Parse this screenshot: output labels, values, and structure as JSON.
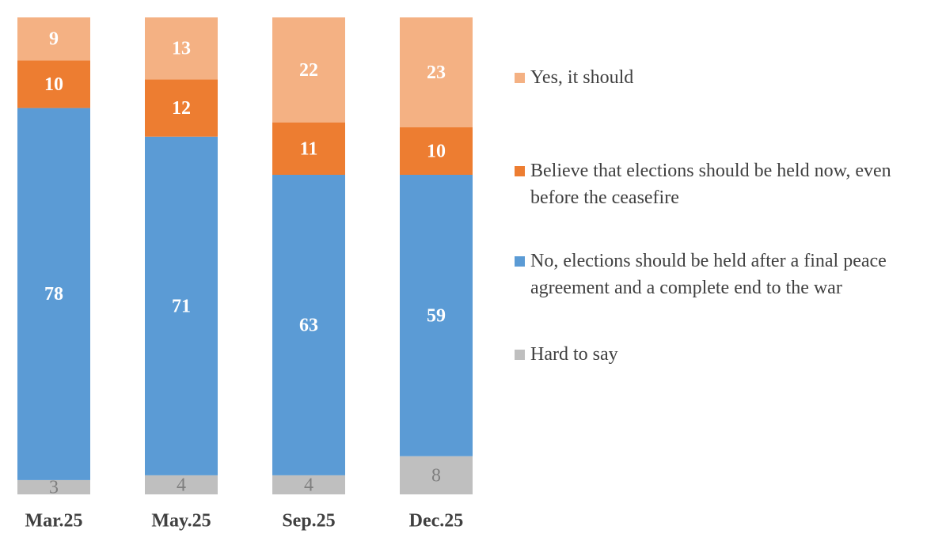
{
  "chart_data": {
    "type": "stacked_bar",
    "categories": [
      "Mar.25",
      "May.25",
      "Sep.25",
      "Dec.25"
    ],
    "series": [
      {
        "name": "Hard to say",
        "color": "#bfbfbf",
        "values": [
          3,
          4,
          4,
          8
        ]
      },
      {
        "name": "No, elections should be held after a final peace agreement and a complete end to the war",
        "color": "#5b9bd5",
        "values": [
          78,
          71,
          63,
          59
        ]
      },
      {
        "name": "Believe that elections should be held now, even before the ceasefire",
        "color": "#ed7d31",
        "values": [
          10,
          12,
          11,
          10
        ]
      },
      {
        "name": "Yes, it should",
        "color": "#f4b183",
        "values": [
          9,
          13,
          22,
          23
        ]
      }
    ],
    "ylim": [
      0,
      100
    ]
  }
}
